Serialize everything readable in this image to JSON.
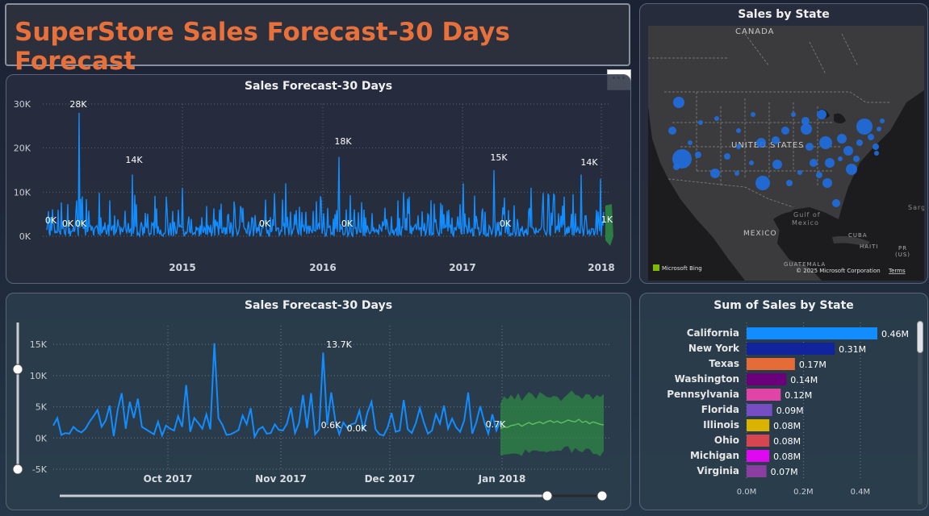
{
  "header": {
    "title": "SuperStore Sales Forecast-30 Days Forecast"
  },
  "more_options": {
    "label": "···"
  },
  "top_chart": {
    "title": "Sales Forecast-30 Days",
    "y_ticks": [
      "30K",
      "20K",
      "10K",
      "0K"
    ],
    "x_ticks": [
      "2015",
      "2016",
      "2017",
      "2018"
    ],
    "colors": {
      "actual": "#118dff",
      "forecast": "#2e8b44"
    }
  },
  "bottom_chart": {
    "title": "Sales Forecast-30 Days",
    "y_ticks": [
      "15K",
      "10K",
      "5K",
      "0K",
      "-5K"
    ],
    "x_ticks": [
      "Oct 2017",
      "Nov 2017",
      "Dec 2017",
      "Jan 2018"
    ],
    "colors": {
      "actual": "#118dff",
      "forecast": "#5fbf5f",
      "band": "#2e8b44"
    }
  },
  "map": {
    "title": "Sales by State",
    "labels": {
      "canada": "CANADA",
      "us": "UNITED STATES",
      "mexico": "MEXICO",
      "gulf1": "Gulf of",
      "gulf2": "Mexico",
      "cuba": "CUBA",
      "guatemala": "GUATEMALA",
      "haiti": "HAITI",
      "pr": "PR",
      "pr_us": "(US)",
      "sargasso": "Sarg"
    },
    "attribution": "© 2025 Microsoft Corporation",
    "terms": "Terms",
    "logo": "Microsoft Bing",
    "bubble_color": "#1f6fe0"
  },
  "bar_chart": {
    "title": "Sum of Sales by State",
    "x_ticks": [
      "0.0M",
      "0.2M",
      "0.4M"
    ],
    "xlim": [
      0,
      0.5
    ]
  },
  "chart_data": [
    {
      "type": "line",
      "title": "Sales Forecast-30 Days",
      "x": [
        "2014-01",
        "2015-01",
        "2016-01",
        "2017-01",
        "2018-01"
      ],
      "ylim": [
        0,
        30000
      ],
      "annotations": [
        {
          "x": "2014-03",
          "label": "28K",
          "value": 28000
        },
        {
          "x": "2014-10",
          "label": "14K",
          "value": 14000
        },
        {
          "x": "2016-03",
          "label": "18K",
          "value": 18000
        },
        {
          "x": "2017-03",
          "label": "15K",
          "value": 15000
        },
        {
          "x": "2017-11",
          "label": "14K",
          "value": 14000
        },
        {
          "x": "2014-01",
          "label": "0K",
          "value": 0
        },
        {
          "x": "2014-02",
          "label": "0K",
          "value": 0
        },
        {
          "x": "2014-03",
          "label": "0K",
          "value": 0
        },
        {
          "x": "2015-06",
          "label": "0K",
          "value": 0
        },
        {
          "x": "2016-03",
          "label": "0K",
          "value": 0
        },
        {
          "x": "2017-04",
          "label": "0K",
          "value": 0
        },
        {
          "x": "2017-12",
          "label": "1K",
          "value": 1000
        }
      ]
    },
    {
      "type": "line",
      "title": "Sales Forecast-30 Days",
      "x_labels": [
        "Oct 2017",
        "Nov 2017",
        "Dec 2017",
        "Jan 2018"
      ],
      "ylim": [
        -5000,
        18000
      ],
      "series": [
        {
          "name": "actual",
          "values": [
            2000,
            3200,
            500,
            800,
            700,
            1800,
            1200,
            900,
            1500,
            2600,
            3500,
            4500,
            1800,
            2800,
            5200,
            300,
            4600,
            7200,
            1500,
            5800,
            3200,
            6300,
            1800,
            1400,
            1000,
            600,
            2600,
            400,
            2000,
            1500,
            1200,
            3500,
            1800,
            8500,
            1000,
            3200,
            2400,
            1500,
            3800,
            1400,
            15200,
            3200,
            2100,
            500,
            600,
            900,
            1300,
            3600,
            2200,
            4800,
            200,
            1400,
            1800,
            700,
            800,
            2200,
            1300,
            1200,
            2300,
            4900,
            800,
            2400,
            6900,
            1600,
            7200,
            600,
            1400,
            13700,
            2100,
            7300,
            2800,
            600,
            2500,
            1600,
            2200,
            2400,
            4400,
            1300,
            4100,
            5800,
            1400,
            600,
            400,
            1700,
            4000,
            1000,
            1200,
            6100,
            1400,
            800,
            2400,
            4800,
            2500,
            700,
            1200,
            3800,
            2300,
            5200,
            1500,
            3100,
            1700,
            1000,
            2800,
            7300,
            700,
            2500,
            5100,
            2600,
            700,
            3800,
            1200,
            2700
          ]
        },
        {
          "name": "forecast",
          "values": [
            1500,
            1800,
            1700,
            2000,
            2100,
            2300,
            1900,
            2200,
            2500,
            2200,
            2400,
            2600,
            2300,
            2600,
            2800,
            2500,
            2700,
            2400,
            2600,
            2900,
            2700,
            2600,
            3000,
            2500,
            2700,
            2300,
            2600,
            2400,
            2200,
            2100
          ]
        }
      ],
      "annotations": [
        {
          "label": "13.7K",
          "value": 13700
        },
        {
          "label": "0.6K",
          "value": 600
        },
        {
          "label": "0.0K",
          "value": 0
        },
        {
          "label": "0.7K",
          "value": 700
        }
      ]
    },
    {
      "type": "bar",
      "title": "Sum of Sales by State",
      "categories": [
        "California",
        "New York",
        "Texas",
        "Washington",
        "Pennsylvania",
        "Florida",
        "Illinois",
        "Ohio",
        "Michigan",
        "Virginia"
      ],
      "values": [
        0.46,
        0.31,
        0.17,
        0.14,
        0.12,
        0.09,
        0.08,
        0.08,
        0.08,
        0.07
      ],
      "labels": [
        "0.46M",
        "0.31M",
        "0.17M",
        "0.14M",
        "0.12M",
        "0.09M",
        "0.08M",
        "0.08M",
        "0.08M",
        "0.07M"
      ],
      "colors": [
        "#118dff",
        "#12239e",
        "#e66c37",
        "#6b007b",
        "#e044a7",
        "#744ec2",
        "#d9b300",
        "#d64550",
        "#e008f0",
        "#8a3fa0"
      ],
      "xlim": [
        0,
        0.5
      ]
    }
  ]
}
